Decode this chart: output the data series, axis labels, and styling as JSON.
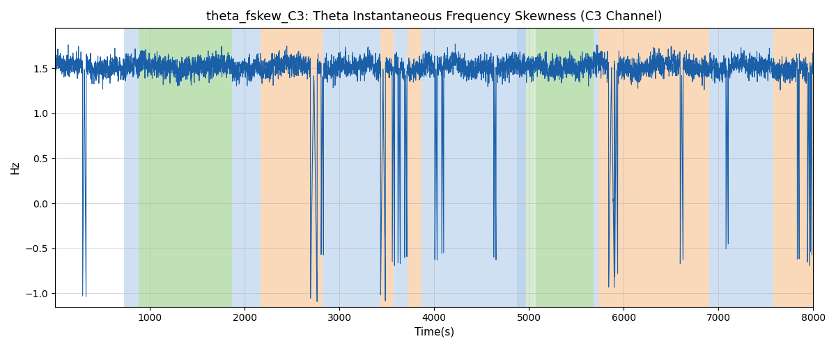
{
  "title": "theta_fskew_C3: Theta Instantaneous Frequency Skewness (C3 Channel)",
  "xlabel": "Time(s)",
  "ylabel": "Hz",
  "xlim": [
    0,
    8000
  ],
  "ylim": [
    -1.15,
    1.95
  ],
  "yticks": [
    -1.0,
    -0.5,
    0.0,
    0.5,
    1.0,
    1.5
  ],
  "xticks": [
    1000,
    2000,
    3000,
    4000,
    5000,
    6000,
    7000,
    8000
  ],
  "line_color": "#1a5fa8",
  "line_width": 0.8,
  "background_regions": [
    {
      "xmin": 730,
      "xmax": 880,
      "color": "#a8c8e8",
      "alpha": 0.55
    },
    {
      "xmin": 880,
      "xmax": 1870,
      "color": "#8dc87a",
      "alpha": 0.55
    },
    {
      "xmin": 1870,
      "xmax": 2170,
      "color": "#a8c8e8",
      "alpha": 0.55
    },
    {
      "xmin": 2170,
      "xmax": 2820,
      "color": "#f5ba82",
      "alpha": 0.55
    },
    {
      "xmin": 2820,
      "xmax": 3430,
      "color": "#a8c8e8",
      "alpha": 0.55
    },
    {
      "xmin": 3430,
      "xmax": 3570,
      "color": "#f5ba82",
      "alpha": 0.55
    },
    {
      "xmin": 3570,
      "xmax": 3720,
      "color": "#a8c8e8",
      "alpha": 0.55
    },
    {
      "xmin": 3720,
      "xmax": 3870,
      "color": "#f5ba82",
      "alpha": 0.55
    },
    {
      "xmin": 3870,
      "xmax": 4870,
      "color": "#a8c8e8",
      "alpha": 0.55
    },
    {
      "xmin": 4870,
      "xmax": 4970,
      "color": "#a8c8e8",
      "alpha": 0.75
    },
    {
      "xmin": 4970,
      "xmax": 5070,
      "color": "#8dc87a",
      "alpha": 0.35
    },
    {
      "xmin": 5070,
      "xmax": 5680,
      "color": "#8dc87a",
      "alpha": 0.55
    },
    {
      "xmin": 5680,
      "xmax": 5730,
      "color": "#a8c8e8",
      "alpha": 0.55
    },
    {
      "xmin": 5730,
      "xmax": 6060,
      "color": "#f5ba82",
      "alpha": 0.55
    },
    {
      "xmin": 6060,
      "xmax": 6900,
      "color": "#f5ba82",
      "alpha": 0.55
    },
    {
      "xmin": 6900,
      "xmax": 7580,
      "color": "#a8c8e8",
      "alpha": 0.55
    },
    {
      "xmin": 7580,
      "xmax": 8000,
      "color": "#f5ba82",
      "alpha": 0.55
    }
  ],
  "seed": 2024,
  "n_points": 8000,
  "title_fontsize": 13,
  "base_value": 1.52,
  "noise_std": 0.055
}
